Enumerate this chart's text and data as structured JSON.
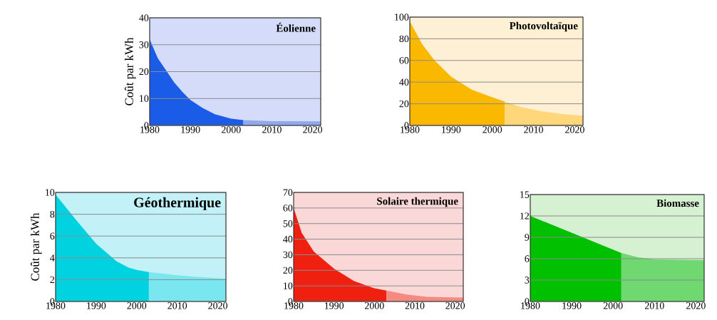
{
  "chart_data": [
    {
      "type": "area",
      "title": "**Éolienne**",
      "ylabel": "Coût par kWh",
      "xlim": [
        1980,
        2022
      ],
      "ylim": [
        0,
        40
      ],
      "xticks": [
        1980,
        1990,
        2000,
        2010,
        2020
      ],
      "yticks": [
        0,
        10,
        20,
        30,
        40
      ],
      "grid": "y",
      "bands": [
        {
          "axis": "y",
          "from": 0,
          "to": 40,
          "color": "#d4dcfa"
        }
      ],
      "series": [
        {
          "color": "#1a5ce8",
          "x": [
            1980,
            1982,
            1984,
            1986,
            1988,
            1990,
            1993,
            1996,
            2000,
            2003
          ],
          "values": [
            32,
            25,
            20.5,
            16,
            12.5,
            9.5,
            6.5,
            4.2,
            2.5,
            2
          ]
        },
        {
          "color": "#8fa8ee",
          "x": [
            2003,
            2010,
            2022
          ],
          "values": [
            2,
            1.6,
            1.5
          ]
        }
      ]
    },
    {
      "type": "area",
      "title": "**Photovoltaïque**",
      "xlim": [
        1980,
        2022
      ],
      "ylim": [
        0,
        100
      ],
      "xticks": [
        1980,
        1990,
        2000,
        2010,
        2020
      ],
      "yticks": [
        0,
        20,
        40,
        60,
        80,
        100
      ],
      "grid": "y",
      "bands": [
        {
          "axis": "y",
          "from": 0,
          "to": 100,
          "color": "#fdf0d4"
        }
      ],
      "series": [
        {
          "color": "#fbb800",
          "x": [
            1980,
            1983,
            1986,
            1990,
            1995,
            2000,
            2003
          ],
          "values": [
            96,
            75,
            60,
            45,
            33,
            26,
            22
          ]
        },
        {
          "color": "#fdd77a",
          "x": [
            2003,
            2007,
            2012,
            2017,
            2022
          ],
          "values": [
            22,
            17,
            13,
            10.5,
            9
          ]
        }
      ]
    },
    {
      "type": "area",
      "title": "**Géothermique**",
      "ylabel": "Coût par kWh",
      "xlim": [
        1980,
        2022
      ],
      "ylim": [
        0,
        10
      ],
      "xticks": [
        1980,
        1990,
        2000,
        2010,
        2020
      ],
      "yticks": [
        0,
        2,
        4,
        6,
        8,
        10
      ],
      "grid": "y",
      "bands": [
        {
          "axis": "y",
          "from": 0,
          "to": 10,
          "color": "#c2f2f8"
        }
      ],
      "series": [
        {
          "color": "#00d2e0",
          "x": [
            1980,
            1985,
            1990,
            1995,
            1998,
            2000,
            2003
          ],
          "values": [
            9.8,
            7.5,
            5.3,
            3.7,
            3.1,
            2.9,
            2.7
          ]
        },
        {
          "color": "#7ae6f0",
          "x": [
            2003,
            2010,
            2015,
            2022
          ],
          "values": [
            2.7,
            2.4,
            2.25,
            2.1
          ]
        }
      ]
    },
    {
      "type": "area",
      "title": "**Solaire thermique**",
      "xlim": [
        1980,
        2022
      ],
      "ylim": [
        0,
        70
      ],
      "xticks": [
        1980,
        1990,
        2000,
        2010,
        2020
      ],
      "yticks": [
        0,
        10,
        20,
        30,
        40,
        50,
        60,
        70
      ],
      "grid": "y",
      "bands": [
        {
          "axis": "y",
          "from": 0,
          "to": 70,
          "color": "#fad8d8"
        }
      ],
      "series": [
        {
          "color": "#f02010",
          "x": [
            1980,
            1982,
            1985,
            1990,
            1995,
            2000,
            2003
          ],
          "values": [
            60,
            44,
            32,
            21,
            13,
            8.5,
            7
          ]
        },
        {
          "color": "#f58a80",
          "x": [
            2003,
            2008,
            2013,
            2022
          ],
          "values": [
            7,
            4.5,
            3,
            2.5
          ]
        }
      ]
    },
    {
      "type": "area",
      "title": "**Biomasse**",
      "xlim": [
        1980,
        2022
      ],
      "ylim": [
        0,
        15
      ],
      "xticks": [
        1980,
        1990,
        2000,
        2010,
        2020
      ],
      "yticks": [
        0,
        3,
        6,
        9,
        12,
        15
      ],
      "grid": "y",
      "bands": [
        {
          "axis": "y",
          "from": 0,
          "to": 15,
          "color": "#d6f0d2"
        }
      ],
      "series": [
        {
          "color": "#00c000",
          "x": [
            1980,
            1991,
            2002
          ],
          "values": [
            12,
            9.4,
            6.8
          ]
        },
        {
          "color": "#70d870",
          "x": [
            2002,
            2006,
            2010,
            2022
          ],
          "values": [
            6.8,
            6.2,
            5.9,
            5.8
          ]
        }
      ]
    }
  ]
}
